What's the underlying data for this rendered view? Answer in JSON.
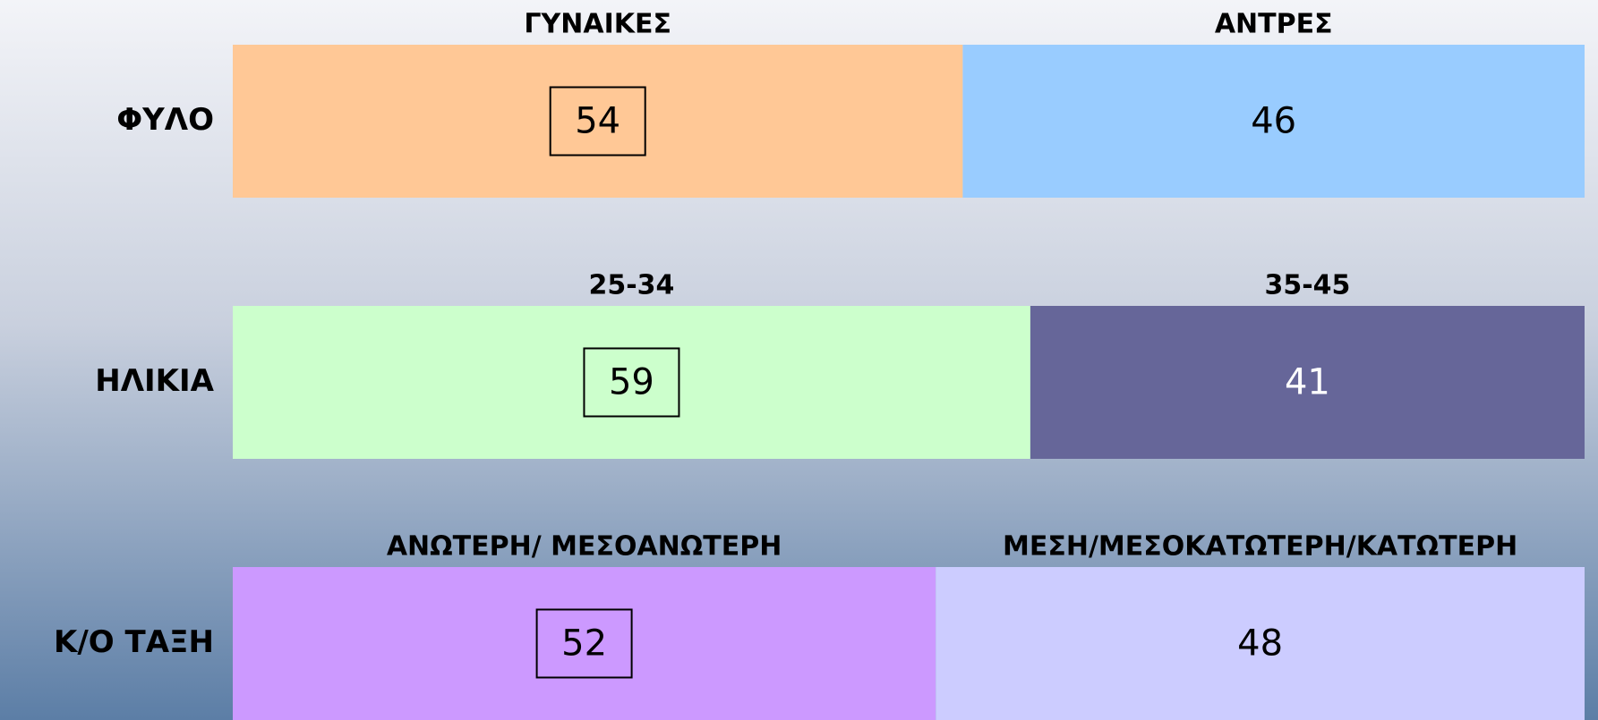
{
  "chart_data": [
    {
      "type": "stacked_bar",
      "categories": [
        "ΦΥΛΟ"
      ],
      "xlim": [
        0,
        100
      ],
      "series": [
        {
          "name": "ΓΥΝΑΙΚΕΣ",
          "color": "#ffc896",
          "label_color": "#000000",
          "values": [
            54
          ]
        },
        {
          "name": "ΑΝΤΡΕΣ",
          "color": "#99ccff",
          "label_color": "#000000",
          "values": [
            46
          ]
        }
      ]
    },
    {
      "type": "stacked_bar",
      "categories": [
        "ΗΛΙΚΙΑ"
      ],
      "xlim": [
        0,
        100
      ],
      "series": [
        {
          "name": "25-34",
          "color": "#ccffcc",
          "label_color": "#000000",
          "values": [
            59
          ]
        },
        {
          "name": "35-45",
          "color": "#666699",
          "label_color": "#ffffff",
          "values": [
            41
          ]
        }
      ]
    },
    {
      "type": "stacked_bar",
      "categories": [
        "Κ/Ο ΤΑΞΗ"
      ],
      "xlim": [
        0,
        100
      ],
      "series": [
        {
          "name": "ΑΝΩΤΕΡΗ/ ΜΕΣΟΑΝΩΤΕΡΗ",
          "color": "#cc99ff",
          "label_color": "#000000",
          "values": [
            52
          ]
        },
        {
          "name": "ΜΕΣΗ/ΜΕΣΟΚΑΤΩΤΕΡΗ/ΚΑΤΩΤΕΡΗ",
          "color": "#ccccff",
          "label_color": "#000000",
          "values": [
            48
          ]
        }
      ]
    }
  ]
}
